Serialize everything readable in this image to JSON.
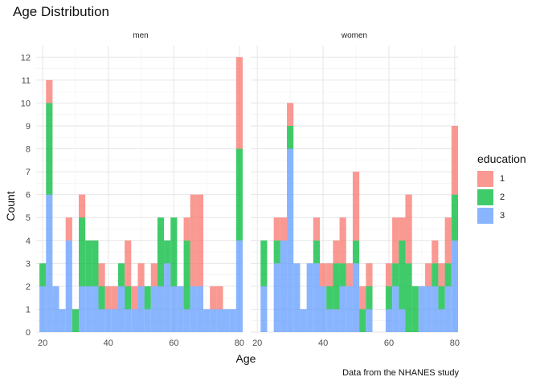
{
  "chart_data": {
    "type": "bar",
    "title": "Age Distribution",
    "caption": "Data from the NHANES study",
    "xlabel": "Age",
    "ylabel": "Count",
    "ylim": [
      0,
      12.5
    ],
    "xlim": [
      18,
      81
    ],
    "y_ticks": [
      0,
      1,
      2,
      3,
      4,
      5,
      6,
      7,
      8,
      9,
      10,
      11,
      12
    ],
    "x_ticks": [
      20,
      40,
      60,
      80
    ],
    "grid": true,
    "bin_width": 2,
    "legend": {
      "title": "education",
      "position": "right",
      "entries": [
        {
          "label": "1",
          "color": "#F8766D"
        },
        {
          "label": "2",
          "color": "#00BA38"
        },
        {
          "label": "3",
          "color": "#619CFF"
        }
      ]
    },
    "panels": [
      {
        "name": "men",
        "bin_centers": [
          20,
          22,
          24,
          26,
          28,
          30,
          32,
          34,
          36,
          38,
          40,
          42,
          44,
          46,
          48,
          50,
          52,
          54,
          56,
          58,
          60,
          62,
          64,
          66,
          68,
          70,
          72,
          74,
          76,
          78,
          80
        ],
        "series": [
          {
            "name": "1",
            "values": [
              0,
              1,
              0,
              0,
              1,
              0,
              1,
              0,
              0,
              1,
              1,
              1,
              0,
              2,
              1,
              1,
              0,
              1,
              0,
              0,
              0,
              0,
              1,
              4,
              4,
              0,
              1,
              1,
              0,
              0,
              4
            ]
          },
          {
            "name": "2",
            "values": [
              1,
              4,
              0,
              0,
              0,
              1,
              3,
              2,
              2,
              1,
              0,
              0,
              1,
              1,
              0,
              0,
              1,
              0,
              3,
              1,
              3,
              0,
              3,
              0,
              0,
              0,
              0,
              0,
              0,
              0,
              4
            ]
          },
          {
            "name": "3",
            "values": [
              2,
              6,
              2,
              1,
              4,
              0,
              2,
              2,
              2,
              1,
              1,
              1,
              2,
              1,
              1,
              2,
              1,
              2,
              2,
              3,
              2,
              2,
              1,
              2,
              2,
              1,
              1,
              1,
              1,
              1,
              4
            ]
          }
        ]
      },
      {
        "name": "women",
        "bin_centers": [
          20,
          22,
          24,
          26,
          28,
          30,
          32,
          34,
          36,
          38,
          40,
          42,
          44,
          46,
          48,
          50,
          52,
          54,
          56,
          58,
          60,
          62,
          64,
          66,
          68,
          70,
          72,
          74,
          76,
          78,
          80
        ],
        "series": [
          {
            "name": "1",
            "values": [
              0,
              0,
              0,
              1,
              1,
              1,
              0,
              0,
              0,
              1,
              1,
              1,
              1,
              2,
              1,
              3,
              1,
              1,
              0,
              0,
              1,
              2,
              1,
              3,
              0,
              0,
              1,
              1,
              1,
              2,
              3
            ]
          },
          {
            "name": "2",
            "values": [
              0,
              2,
              0,
              1,
              0,
              1,
              0,
              0,
              0,
              1,
              0,
              1,
              2,
              1,
              0,
              1,
              1,
              1,
              0,
              0,
              1,
              1,
              3,
              3,
              2,
              0,
              0,
              1,
              1,
              1,
              2
            ]
          },
          {
            "name": "3",
            "values": [
              0,
              2,
              0,
              3,
              4,
              8,
              3,
              1,
              3,
              3,
              2,
              1,
              1,
              2,
              2,
              3,
              0,
              1,
              0,
              0,
              1,
              2,
              1,
              0,
              0,
              2,
              2,
              2,
              1,
              2,
              4
            ]
          }
        ]
      }
    ]
  }
}
